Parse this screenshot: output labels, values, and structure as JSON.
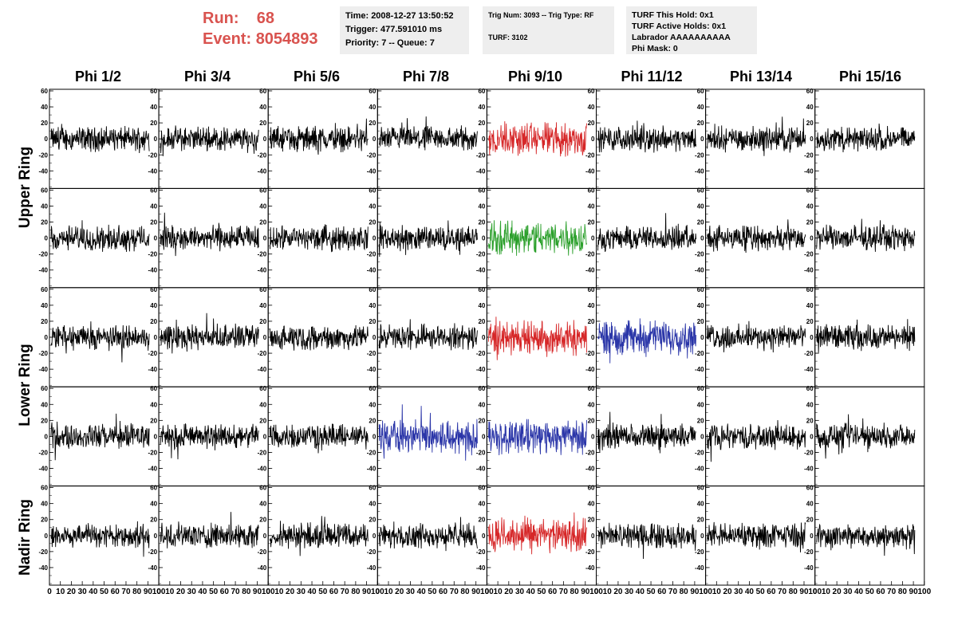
{
  "header": {
    "run_label": "Run:",
    "run_value": "68",
    "event_label": "Event:",
    "event_value": "8054893",
    "time_line": "Time: 2008-12-27 13:50:52",
    "trigger_line": "Trigger: 477.591010 ms",
    "priority_line": "Priority: 7 -- Queue: 7",
    "trig_line": "Trig Num: 3093 -- Trig Type: RF",
    "turf_line": "TURF: 3102",
    "turf_hold_line": "TURF This Hold: 0x1",
    "turf_active_line": "TURF Active Holds: 0x1",
    "labrador_line": "Labrador AAAAAAAAAA",
    "phimask_line": "Phi Mask: 0"
  },
  "columns": [
    "Phi 1/2",
    "Phi 3/4",
    "Phi 5/6",
    "Phi 7/8",
    "Phi 9/10",
    "Phi 11/12",
    "Phi 13/14",
    "Phi 15/16"
  ],
  "rings": [
    "Upper Ring",
    "Lower Ring",
    "Nadir Ring"
  ],
  "colors": {
    "black": "#000000",
    "red": "#d62728",
    "green": "#2ca02c",
    "blue": "#2a35a8",
    "accent": "#d9534f",
    "box_bg": "#eeeeee"
  },
  "chart_data": {
    "type": "line",
    "panel_rows": 5,
    "panel_cols": 8,
    "xlim": [
      0,
      100
    ],
    "ylim": [
      -60,
      60
    ],
    "y_ticks": [
      -40,
      -20,
      0,
      20,
      40,
      60
    ],
    "x_ticks": [
      0,
      10,
      20,
      30,
      40,
      50,
      60,
      70,
      80,
      90,
      100
    ],
    "highlighted_panels": [
      {
        "row": 0,
        "col": 4,
        "color": "red"
      },
      {
        "row": 1,
        "col": 4,
        "color": "green"
      },
      {
        "row": 2,
        "col": 4,
        "color": "red"
      },
      {
        "row": 2,
        "col": 5,
        "color": "blue"
      },
      {
        "row": 3,
        "col": 3,
        "color": "blue"
      },
      {
        "row": 3,
        "col": 4,
        "color": "blue"
      },
      {
        "row": 4,
        "col": 4,
        "color": "red"
      }
    ],
    "series_description": "noise waveforms, amplitude roughly within ±40, about 260 samples per panel"
  }
}
